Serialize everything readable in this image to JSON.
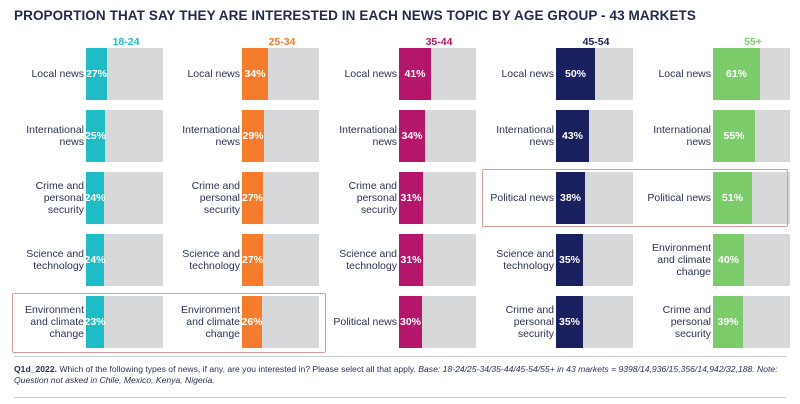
{
  "title": "PROPORTION THAT SAY THEY ARE INTERESTED IN EACH NEWS TOPIC BY AGE GROUP - 43 MARKETS",
  "chart_data": {
    "type": "bar",
    "unit": "%",
    "groups": [
      {
        "name": "18-24",
        "color": "#1fbcc6",
        "items": [
          {
            "label": "Local news",
            "value": 27
          },
          {
            "label": "International news",
            "value": 25
          },
          {
            "label": "Crime and personal security",
            "value": 24
          },
          {
            "label": "Science and technology",
            "value": 24
          },
          {
            "label": "Environment and climate change",
            "value": 23
          }
        ]
      },
      {
        "name": "25-34",
        "color": "#f47c2c",
        "items": [
          {
            "label": "Local news",
            "value": 34
          },
          {
            "label": "International news",
            "value": 29
          },
          {
            "label": "Crime and personal security",
            "value": 27
          },
          {
            "label": "Science and technology",
            "value": 27
          },
          {
            "label": "Environment and climate change",
            "value": 26
          }
        ]
      },
      {
        "name": "35-44",
        "color": "#b5166b",
        "items": [
          {
            "label": "Local news",
            "value": 41
          },
          {
            "label": "International news",
            "value": 34
          },
          {
            "label": "Crime and personal security",
            "value": 31
          },
          {
            "label": "Science and technology",
            "value": 31
          },
          {
            "label": "Political news",
            "value": 30
          }
        ]
      },
      {
        "name": "45-54",
        "color": "#1a1f5e",
        "items": [
          {
            "label": "Local news",
            "value": 50
          },
          {
            "label": "International news",
            "value": 43
          },
          {
            "label": "Political news",
            "value": 38
          },
          {
            "label": "Science and technology",
            "value": 35
          },
          {
            "label": "Crime and personal security",
            "value": 35
          }
        ]
      },
      {
        "name": "55+",
        "color": "#7ccc6b",
        "items": [
          {
            "label": "Local news",
            "value": 61
          },
          {
            "label": "International news",
            "value": 55
          },
          {
            "label": "Political news",
            "value": 51
          },
          {
            "label": "Environment and climate change",
            "value": 40
          },
          {
            "label": "Crime and personal security",
            "value": 39
          }
        ]
      }
    ]
  },
  "footnote": {
    "question_id": "Q1d_2022.",
    "question": " Which of the following types of news, if any, are you interested in? Please select all that apply. ",
    "base": "Base: 18-24/25-34/35-44/45-54/55+ in 43 markets = 9398/14,936/15,356/14,942/32,188. Note: Question not asked in Chile, Mexico, Kenya, Nigeria."
  }
}
